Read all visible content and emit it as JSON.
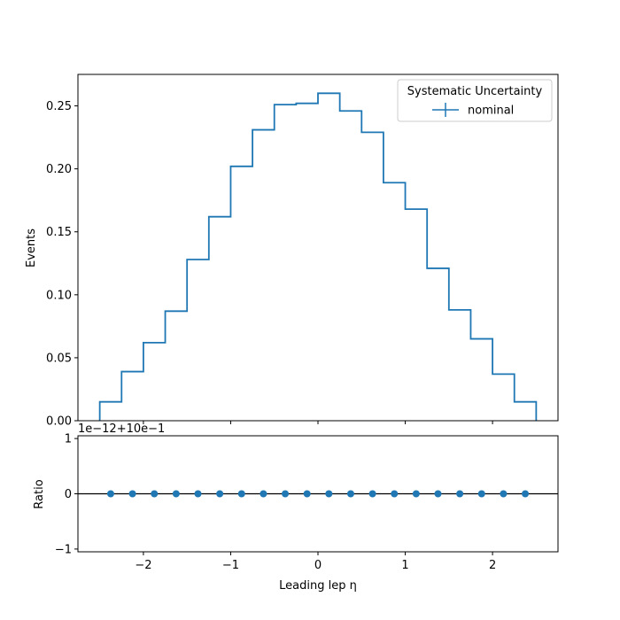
{
  "chart_data": [
    {
      "type": "step",
      "panel": "main",
      "ylabel": "Events",
      "xlabel": "",
      "ylim": [
        0,
        0.275
      ],
      "xlim": [
        -2.75,
        2.75
      ],
      "yticks": [
        "0.00",
        "0.05",
        "0.10",
        "0.15",
        "0.20",
        "0.25"
      ],
      "ytick_values": [
        0,
        0.05,
        0.1,
        0.15,
        0.2,
        0.25
      ],
      "bin_edges": [
        -2.5,
        -2.25,
        -2.0,
        -1.75,
        -1.5,
        -1.25,
        -1.0,
        -0.75,
        -0.5,
        -0.25,
        0.0,
        0.25,
        0.5,
        0.75,
        1.0,
        1.25,
        1.5,
        1.75,
        2.0,
        2.25,
        2.5
      ],
      "series": [
        {
          "name": "nominal",
          "color": "#1f77b4",
          "values": [
            0.015,
            0.039,
            0.062,
            0.087,
            0.128,
            0.162,
            0.202,
            0.231,
            0.251,
            0.252,
            0.26,
            0.246,
            0.229,
            0.189,
            0.168,
            0.121,
            0.088,
            0.065,
            0.037,
            0.015
          ]
        }
      ],
      "legend": {
        "title": "Systematic Uncertainty",
        "entries": [
          "nominal"
        ],
        "placement": "top-right"
      }
    },
    {
      "type": "scatter",
      "panel": "ratio",
      "ylabel": "Ratio",
      "xlabel": "Leading lep η",
      "offset_text": "1e−12+10e−1",
      "ylim": [
        -1.05,
        1.05
      ],
      "xlim": [
        -2.75,
        2.75
      ],
      "yticks": [
        "−1",
        "0",
        "1"
      ],
      "ytick_values": [
        -1,
        0,
        1
      ],
      "xticks": [
        "−2",
        "−1",
        "0",
        "1",
        "2"
      ],
      "xtick_values": [
        -2,
        -1,
        0,
        1,
        2
      ],
      "reference_line": 0,
      "series": [
        {
          "color": "#1f77b4",
          "x": [
            -2.375,
            -2.125,
            -1.875,
            -1.625,
            -1.375,
            -1.125,
            -0.875,
            -0.625,
            -0.375,
            -0.125,
            0.125,
            0.375,
            0.625,
            0.875,
            1.125,
            1.375,
            1.625,
            1.875,
            2.125,
            2.375
          ],
          "y": [
            0,
            0,
            0,
            0,
            0,
            0,
            0,
            0,
            0,
            0,
            0,
            0,
            0,
            0,
            0,
            0,
            0,
            0,
            0,
            0
          ]
        }
      ]
    }
  ]
}
